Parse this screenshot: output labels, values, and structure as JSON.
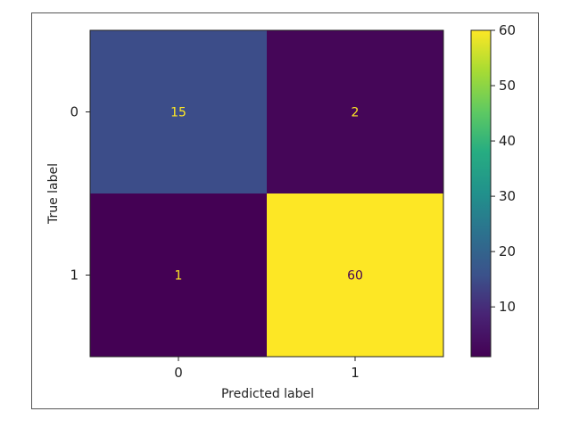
{
  "chart_data": {
    "type": "heatmap",
    "title": "",
    "xlabel": "Predicted label",
    "ylabel": "True label",
    "x_categories": [
      "0",
      "1"
    ],
    "y_categories": [
      "0",
      "1"
    ],
    "values": [
      [
        15,
        2
      ],
      [
        1,
        60
      ]
    ],
    "value_range": [
      1,
      60
    ],
    "colormap": "viridis",
    "colorbar_ticks": [
      10,
      20,
      30,
      40,
      50,
      60
    ],
    "colors": {
      "low": "#440154",
      "high": "#fde725",
      "text_on_dark": "#fde725",
      "text_on_light": "#440154"
    }
  }
}
